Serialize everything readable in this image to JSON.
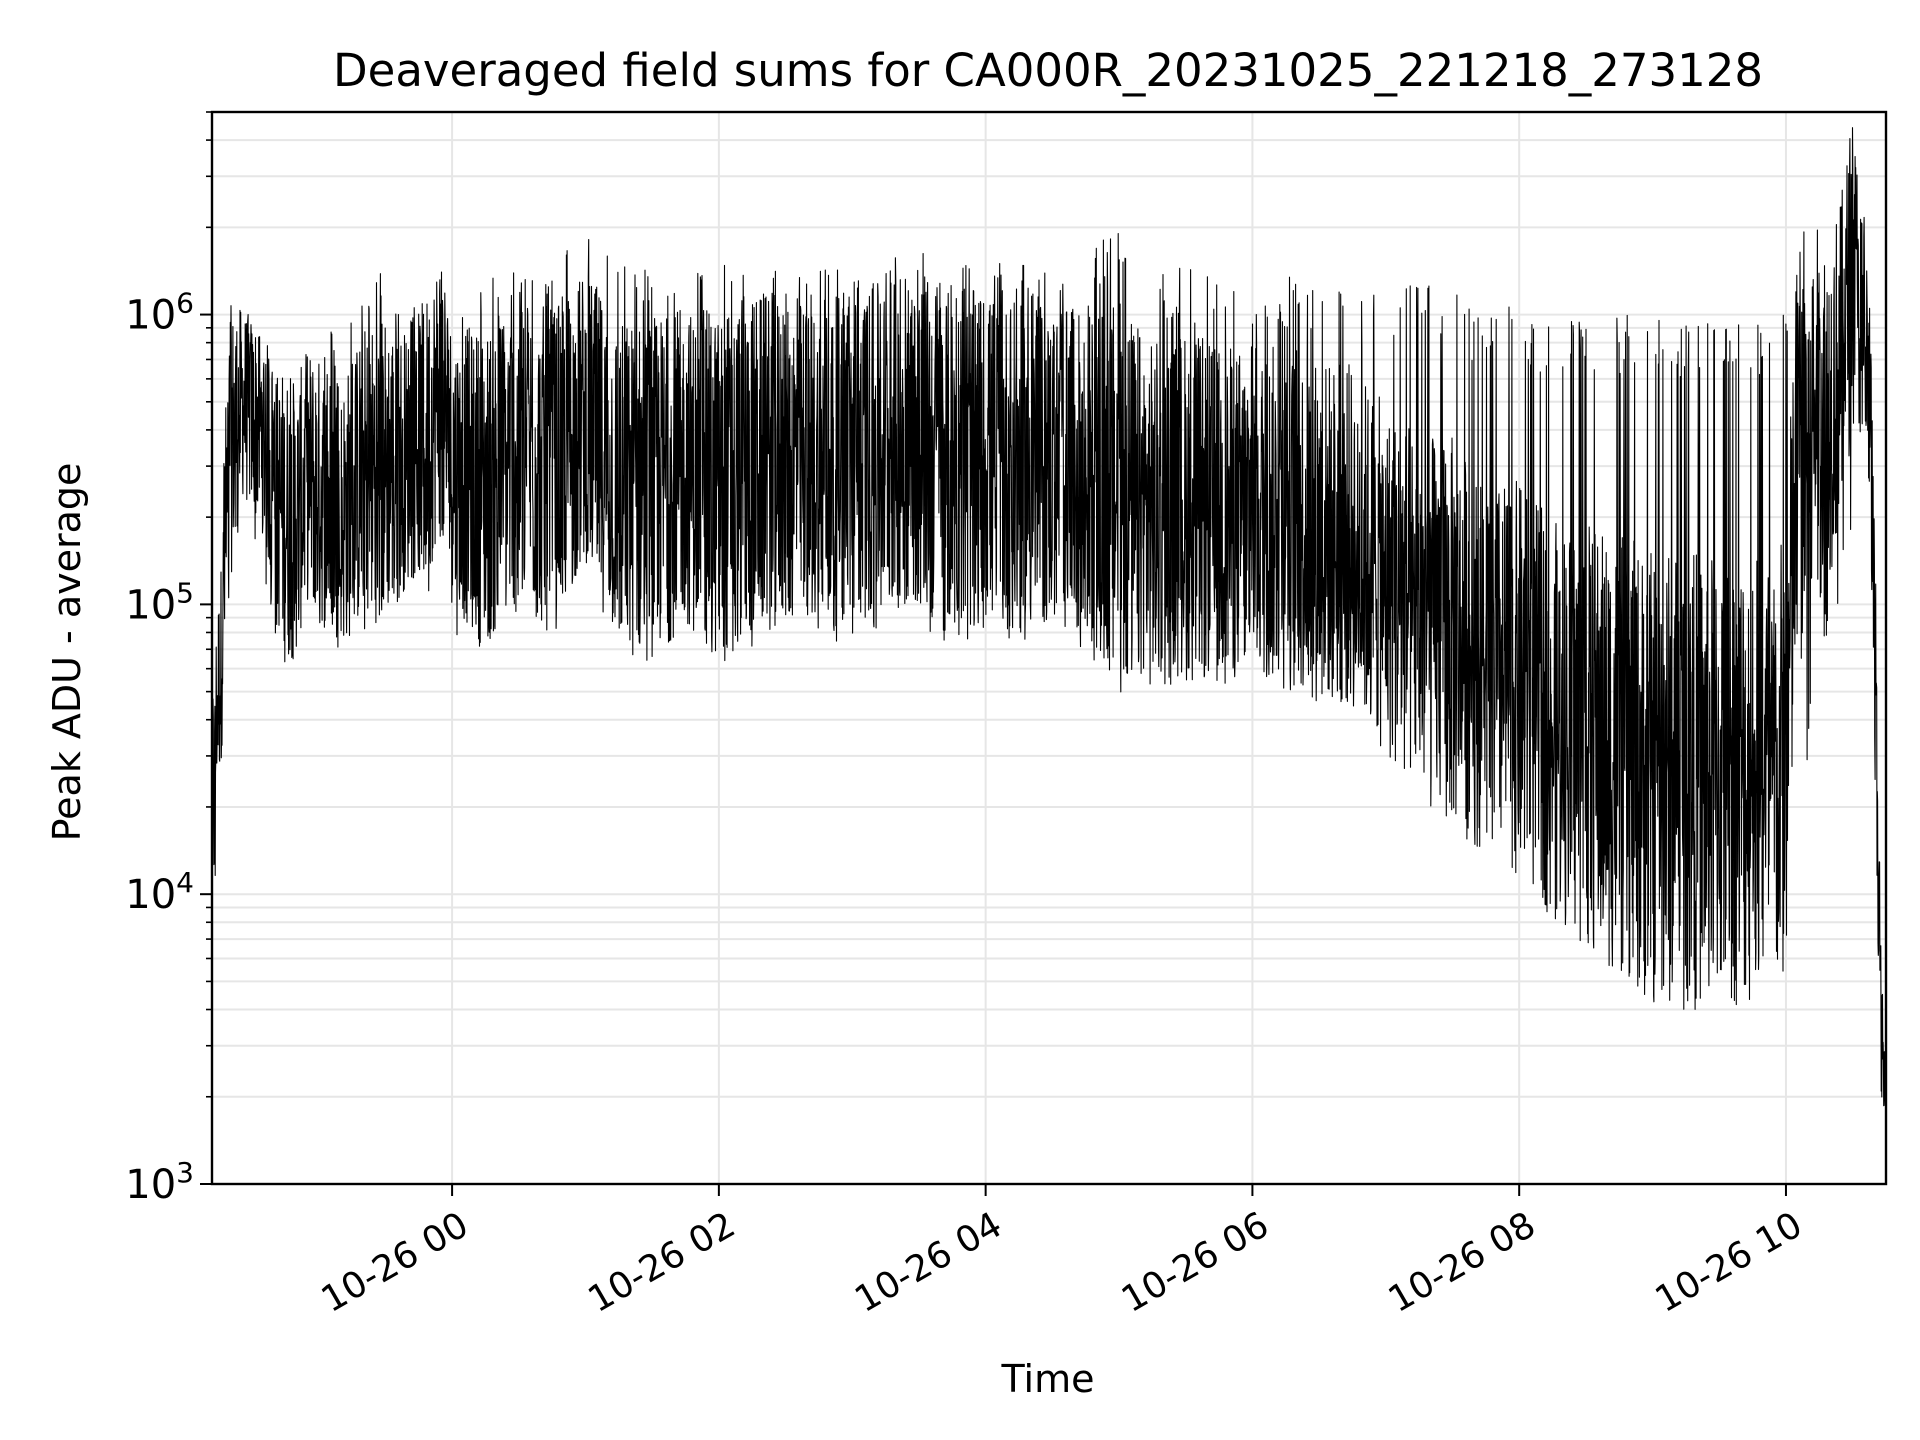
{
  "chart_data": {
    "type": "line",
    "title": "Deaveraged field sums for CA000R_20231025_221218_273128",
    "xlabel": "Time",
    "ylabel": "Peak ADU - average",
    "y_scale": "log",
    "ylim": [
      1000,
      5000000
    ],
    "xlim": [
      "2023-10-25 22:12",
      "2023-10-26 10:45"
    ],
    "grid": true,
    "line_color": "#000000",
    "grid_color": "#e6e6e6",
    "x_ticks": [
      {
        "label": "10-26 00",
        "value": "2023-10-26 00:00"
      },
      {
        "label": "10-26 02",
        "value": "2023-10-26 02:00"
      },
      {
        "label": "10-26 04",
        "value": "2023-10-26 04:00"
      },
      {
        "label": "10-26 06",
        "value": "2023-10-26 06:00"
      },
      {
        "label": "10-26 08",
        "value": "2023-10-26 08:00"
      },
      {
        "label": "10-26 10",
        "value": "2023-10-26 10:00"
      }
    ],
    "y_ticks": [
      {
        "base": "10",
        "exp": "3",
        "value": 1000
      },
      {
        "base": "10",
        "exp": "4",
        "value": 10000
      },
      {
        "base": "10",
        "exp": "5",
        "value": 100000
      },
      {
        "base": "10",
        "exp": "6",
        "value": 1000000
      }
    ],
    "series": [
      {
        "x": [
          "2023-10-25 22:12",
          "2023-10-25 22:13",
          "2023-10-25 22:14",
          "2023-10-25 22:16",
          "2023-10-25 22:18",
          "2023-10-25 22:20",
          "2023-10-25 22:25",
          "2023-10-25 22:30",
          "2023-10-25 22:35",
          "2023-10-25 22:40",
          "2023-10-25 22:45",
          "2023-10-25 22:50",
          "2023-10-25 22:55",
          "2023-10-25 23:00",
          "2023-10-25 23:10",
          "2023-10-25 23:20",
          "2023-10-25 23:30",
          "2023-10-25 23:40",
          "2023-10-25 23:50",
          "2023-10-25 23:55",
          "2023-10-26 00:00",
          "2023-10-26 00:15",
          "2023-10-26 00:30",
          "2023-10-26 00:45",
          "2023-10-26 01:00",
          "2023-10-26 01:15",
          "2023-10-26 01:30",
          "2023-10-26 01:45",
          "2023-10-26 02:00",
          "2023-10-26 02:15",
          "2023-10-26 02:30",
          "2023-10-26 02:45",
          "2023-10-26 03:00",
          "2023-10-26 03:15",
          "2023-10-26 03:30",
          "2023-10-26 03:45",
          "2023-10-26 04:00",
          "2023-10-26 04:15",
          "2023-10-26 04:30",
          "2023-10-26 04:45",
          "2023-10-26 05:00",
          "2023-10-26 05:15",
          "2023-10-26 05:30",
          "2023-10-26 05:45",
          "2023-10-26 06:00",
          "2023-10-26 06:15",
          "2023-10-26 06:30",
          "2023-10-26 06:45",
          "2023-10-26 07:00",
          "2023-10-26 07:15",
          "2023-10-26 07:30",
          "2023-10-26 07:45",
          "2023-10-26 08:00",
          "2023-10-26 08:15",
          "2023-10-26 08:30",
          "2023-10-26 08:45",
          "2023-10-26 09:00",
          "2023-10-26 09:15",
          "2023-10-26 09:30",
          "2023-10-26 09:45",
          "2023-10-26 09:55",
          "2023-10-26 10:00",
          "2023-10-26 10:05",
          "2023-10-26 10:10",
          "2023-10-26 10:15",
          "2023-10-26 10:20",
          "2023-10-26 10:25",
          "2023-10-26 10:30",
          "2023-10-26 10:35",
          "2023-10-26 10:38",
          "2023-10-26 10:40",
          "2023-10-26 10:42",
          "2023-10-26 10:43",
          "2023-10-26 10:44",
          "2023-10-26 10:45"
        ],
        "y_mid": [
          30000,
          20000,
          45000,
          60000,
          150000,
          350000,
          500000,
          450000,
          400000,
          250000,
          200000,
          200000,
          280000,
          250000,
          200000,
          280000,
          300000,
          320000,
          400000,
          600000,
          300000,
          250000,
          350000,
          280000,
          450000,
          250000,
          250000,
          300000,
          250000,
          300000,
          320000,
          300000,
          320000,
          350000,
          380000,
          300000,
          320000,
          280000,
          300000,
          270000,
          230000,
          200000,
          220000,
          200000,
          210000,
          200000,
          180000,
          170000,
          120000,
          90000,
          80000,
          60000,
          55000,
          40000,
          35000,
          30000,
          25000,
          25000,
          25000,
          26000,
          25000,
          30000,
          300000,
          400000,
          450000,
          500000,
          700000,
          1500000,
          800000,
          400000,
          50000,
          8000,
          3000,
          2500,
          1500
        ],
        "y_low": [
          8000,
          6000,
          15000,
          30000,
          70000,
          100000,
          200000,
          150000,
          120000,
          80000,
          60000,
          60000,
          80000,
          80000,
          80000,
          80000,
          90000,
          100000,
          100000,
          150000,
          80000,
          70000,
          90000,
          80000,
          150000,
          70000,
          70000,
          80000,
          60000,
          70000,
          80000,
          80000,
          70000,
          80000,
          80000,
          70000,
          70000,
          70000,
          80000,
          70000,
          60000,
          60000,
          60000,
          60000,
          60000,
          60000,
          55000,
          55000,
          50000,
          45000,
          40000,
          35000,
          30000,
          25000,
          20000,
          18000,
          16000,
          15000,
          15000,
          15000,
          14000,
          18000,
          20000,
          25000,
          50000,
          80000,
          100000,
          200000,
          300000,
          100000,
          20000,
          3000,
          1800,
          1500,
          1200
        ],
        "y_high": [
          50000,
          40000,
          80000,
          200000,
          500000,
          1300000,
          1100000,
          900000,
          800000,
          700000,
          900000,
          700000,
          800000,
          900000,
          900000,
          1200000,
          1500000,
          1000000,
          1300000,
          2000000,
          1000000,
          1300000,
          1500000,
          1600000,
          2100000,
          1500000,
          1600000,
          1400000,
          1500000,
          1600000,
          1600000,
          1500000,
          1500000,
          1600000,
          1700000,
          1600000,
          1500000,
          1500000,
          1400000,
          1500000,
          2200000,
          1400000,
          1500000,
          1300000,
          1200000,
          1400000,
          1300000,
          1300000,
          1200000,
          1300000,
          1400000,
          1000000,
          1100000,
          900000,
          1000000,
          1000000,
          1000000,
          1000000,
          900000,
          1000000,
          900000,
          1100000,
          1200000,
          1300000,
          1400000,
          1800000,
          2000000,
          3500000,
          2500000,
          1000000,
          200000,
          12000,
          6000,
          4000,
          2000
        ]
      }
    ]
  }
}
